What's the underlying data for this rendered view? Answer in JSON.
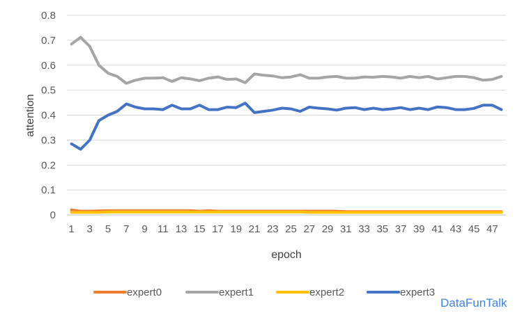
{
  "chart_data": {
    "type": "line",
    "xlabel": "epoch",
    "ylabel": "attention",
    "ylim": [
      0,
      0.8
    ],
    "yticks": [
      "0",
      "0.1",
      "0.2",
      "0.3",
      "0.4",
      "0.5",
      "0.6",
      "0.7",
      "0.8"
    ],
    "x": [
      1,
      2,
      3,
      4,
      5,
      6,
      7,
      8,
      9,
      10,
      11,
      12,
      13,
      14,
      15,
      16,
      17,
      18,
      19,
      20,
      21,
      22,
      23,
      24,
      25,
      26,
      27,
      28,
      29,
      30,
      31,
      32,
      33,
      34,
      35,
      36,
      37,
      38,
      39,
      40,
      41,
      42,
      43,
      44,
      45,
      46,
      47,
      48
    ],
    "xtick_labels": [
      "1",
      "3",
      "5",
      "7",
      "9",
      "11",
      "13",
      "15",
      "17",
      "19",
      "21",
      "23",
      "25",
      "27",
      "29",
      "31",
      "33",
      "35",
      "37",
      "39",
      "41",
      "43",
      "45",
      "47"
    ],
    "grid": true,
    "legend_position": "bottom",
    "series": [
      {
        "name": "expert0",
        "color": "#ED7D31",
        "values": [
          0.02,
          0.015,
          0.015,
          0.016,
          0.017,
          0.017,
          0.017,
          0.017,
          0.017,
          0.017,
          0.017,
          0.017,
          0.017,
          0.017,
          0.015,
          0.017,
          0.015,
          0.015,
          0.015,
          0.015,
          0.015,
          0.015,
          0.015,
          0.015,
          0.015,
          0.015,
          0.015,
          0.015,
          0.015,
          0.015,
          0.013,
          0.013,
          0.013,
          0.013,
          0.013,
          0.013,
          0.013,
          0.013,
          0.013,
          0.013,
          0.013,
          0.013,
          0.013,
          0.013,
          0.013,
          0.013,
          0.013,
          0.013
        ]
      },
      {
        "name": "expert1",
        "color": "#A5A5A5",
        "values": [
          0.685,
          0.712,
          0.675,
          0.6,
          0.568,
          0.555,
          0.527,
          0.54,
          0.548,
          0.548,
          0.55,
          0.535,
          0.55,
          0.545,
          0.538,
          0.548,
          0.553,
          0.543,
          0.545,
          0.53,
          0.565,
          0.56,
          0.557,
          0.55,
          0.553,
          0.562,
          0.548,
          0.548,
          0.553,
          0.555,
          0.548,
          0.548,
          0.553,
          0.552,
          0.555,
          0.553,
          0.548,
          0.555,
          0.55,
          0.555,
          0.545,
          0.55,
          0.555,
          0.555,
          0.55,
          0.54,
          0.543,
          0.555
        ]
      },
      {
        "name": "expert2",
        "color": "#FFC000",
        "values": [
          0.01,
          0.01,
          0.01,
          0.01,
          0.012,
          0.012,
          0.012,
          0.012,
          0.012,
          0.012,
          0.012,
          0.012,
          0.012,
          0.012,
          0.012,
          0.012,
          0.012,
          0.012,
          0.012,
          0.012,
          0.012,
          0.012,
          0.012,
          0.012,
          0.012,
          0.012,
          0.01,
          0.01,
          0.01,
          0.01,
          0.01,
          0.01,
          0.01,
          0.01,
          0.01,
          0.01,
          0.01,
          0.01,
          0.01,
          0.01,
          0.01,
          0.01,
          0.01,
          0.01,
          0.01,
          0.01,
          0.01,
          0.01
        ]
      },
      {
        "name": "expert3",
        "color": "#4472C4",
        "values": [
          0.285,
          0.263,
          0.3,
          0.378,
          0.4,
          0.415,
          0.445,
          0.432,
          0.425,
          0.425,
          0.422,
          0.44,
          0.425,
          0.425,
          0.44,
          0.422,
          0.422,
          0.432,
          0.43,
          0.448,
          0.41,
          0.415,
          0.42,
          0.428,
          0.425,
          0.415,
          0.432,
          0.428,
          0.425,
          0.42,
          0.428,
          0.43,
          0.422,
          0.428,
          0.422,
          0.425,
          0.43,
          0.422,
          0.428,
          0.422,
          0.433,
          0.43,
          0.422,
          0.422,
          0.427,
          0.44,
          0.44,
          0.422
        ]
      }
    ]
  },
  "watermark": "DataFunTalk"
}
